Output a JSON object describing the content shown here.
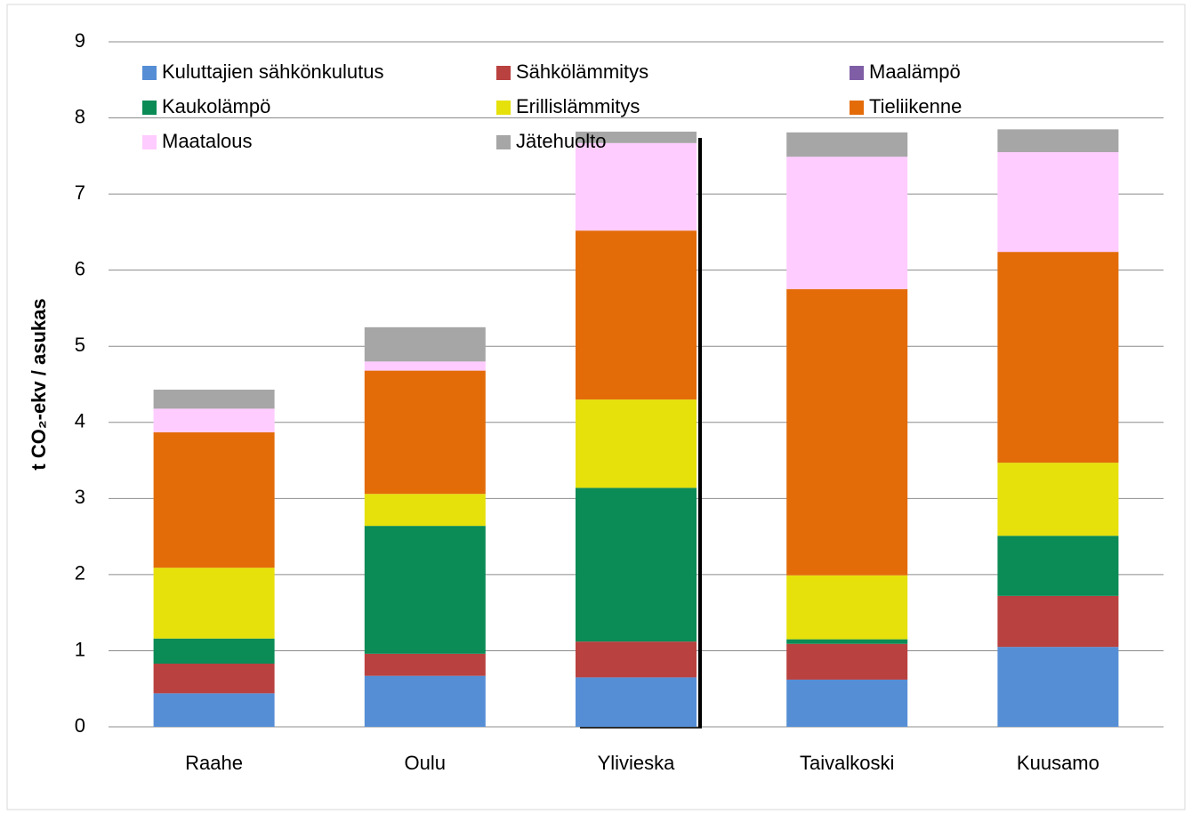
{
  "chart_data": {
    "type": "stacked-bar",
    "y_label": "t CO₂-ekv / asukas",
    "categories": [
      "Raahe",
      "Oulu",
      "Ylivieska",
      "Taivalkoski",
      "Kuusamo"
    ],
    "series": [
      {
        "name": "Kuluttajien sähkönkulutus",
        "color": "#558ed5",
        "values": [
          0.44,
          0.67,
          0.65,
          0.62,
          1.05
        ]
      },
      {
        "name": "Sähkölämmitys",
        "color": "#b9413f",
        "values": [
          0.39,
          0.29,
          0.47,
          0.47,
          0.67
        ]
      },
      {
        "name": "Maalämpö",
        "color": "#7f5ea6",
        "values": [
          0,
          0,
          0,
          0,
          0
        ]
      },
      {
        "name": "Kaukolämpö",
        "color": "#0b8b56",
        "values": [
          0.33,
          1.68,
          2.02,
          0.06,
          0.79
        ]
      },
      {
        "name": "Erillislämmitys",
        "color": "#e6e10a",
        "values": [
          0.93,
          0.42,
          1.16,
          0.84,
          0.96
        ]
      },
      {
        "name": "Tieliikenne",
        "color": "#e36c09",
        "values": [
          1.78,
          1.62,
          2.22,
          3.76,
          2.77
        ]
      },
      {
        "name": "Maatalous",
        "color": "#ffccff",
        "values": [
          0.31,
          0.12,
          1.15,
          1.74,
          1.31
        ]
      },
      {
        "name": "Jätehuolto",
        "color": "#a6a6a6",
        "values": [
          0.25,
          0.45,
          0.15,
          0.32,
          0.3
        ]
      }
    ],
    "ylim": [
      0,
      9
    ],
    "yticks": [
      0,
      1,
      2,
      3,
      4,
      5,
      6,
      7,
      8,
      9
    ],
    "grid": true
  }
}
